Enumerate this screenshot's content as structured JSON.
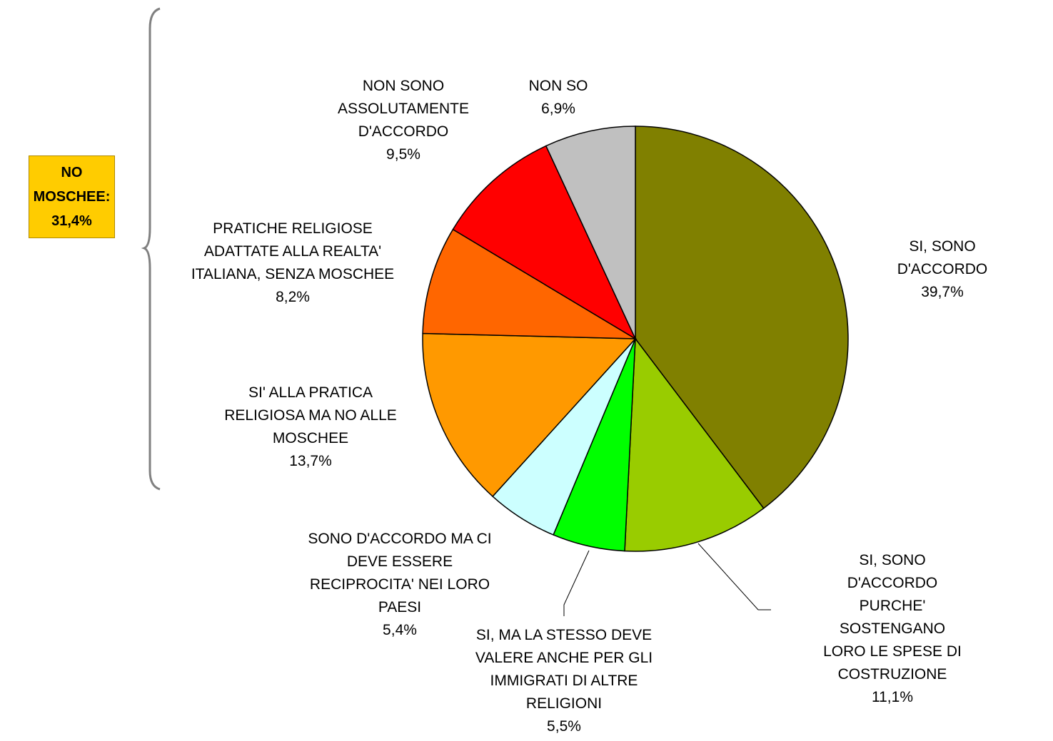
{
  "chart_data": {
    "type": "pie",
    "categories": [
      "SI, SONO D'ACCORDO",
      "SI, SONO D'ACCORDO\nPURCHE' SOSTENGANO\nLORO LE SPESE DI\nCOSTRUZIONE",
      "SI, MA LA STESSO DEVE\nVALERE ANCHE PER GLI\nIMMIGRATI DI ALTRE\nRELIGIONI",
      "SONO D'ACCORDO MA CI\nDEVE ESSERE\nRECIPROCITA' NEI LORO\nPAESI",
      "SI' ALLA PRATICA\nRELIGIOSA MA NO ALLE\nMOSCHEE",
      "PRATICHE RELIGIOSE\nADATTATE ALLA REALTA'\nITALIANA, SENZA MOSCHEE",
      "NON SONO\nASSOLUTAMENTE\nD'ACCORDO",
      "NON SO"
    ],
    "values": [
      39.7,
      11.1,
      5.5,
      5.4,
      13.7,
      8.2,
      9.5,
      6.9
    ],
    "value_labels": [
      "39,7%",
      "11,1%",
      "5,5%",
      "5,4%",
      "13,7%",
      "8,2%",
      "9,5%",
      "6,9%"
    ],
    "colors": [
      "#808000",
      "#99cc00",
      "#00ff00",
      "#ccffff",
      "#ff9900",
      "#ff6600",
      "#ff0000",
      "#c0c0c0"
    ],
    "annotation": "NO\nMOSCHEE:\n31,4%"
  }
}
